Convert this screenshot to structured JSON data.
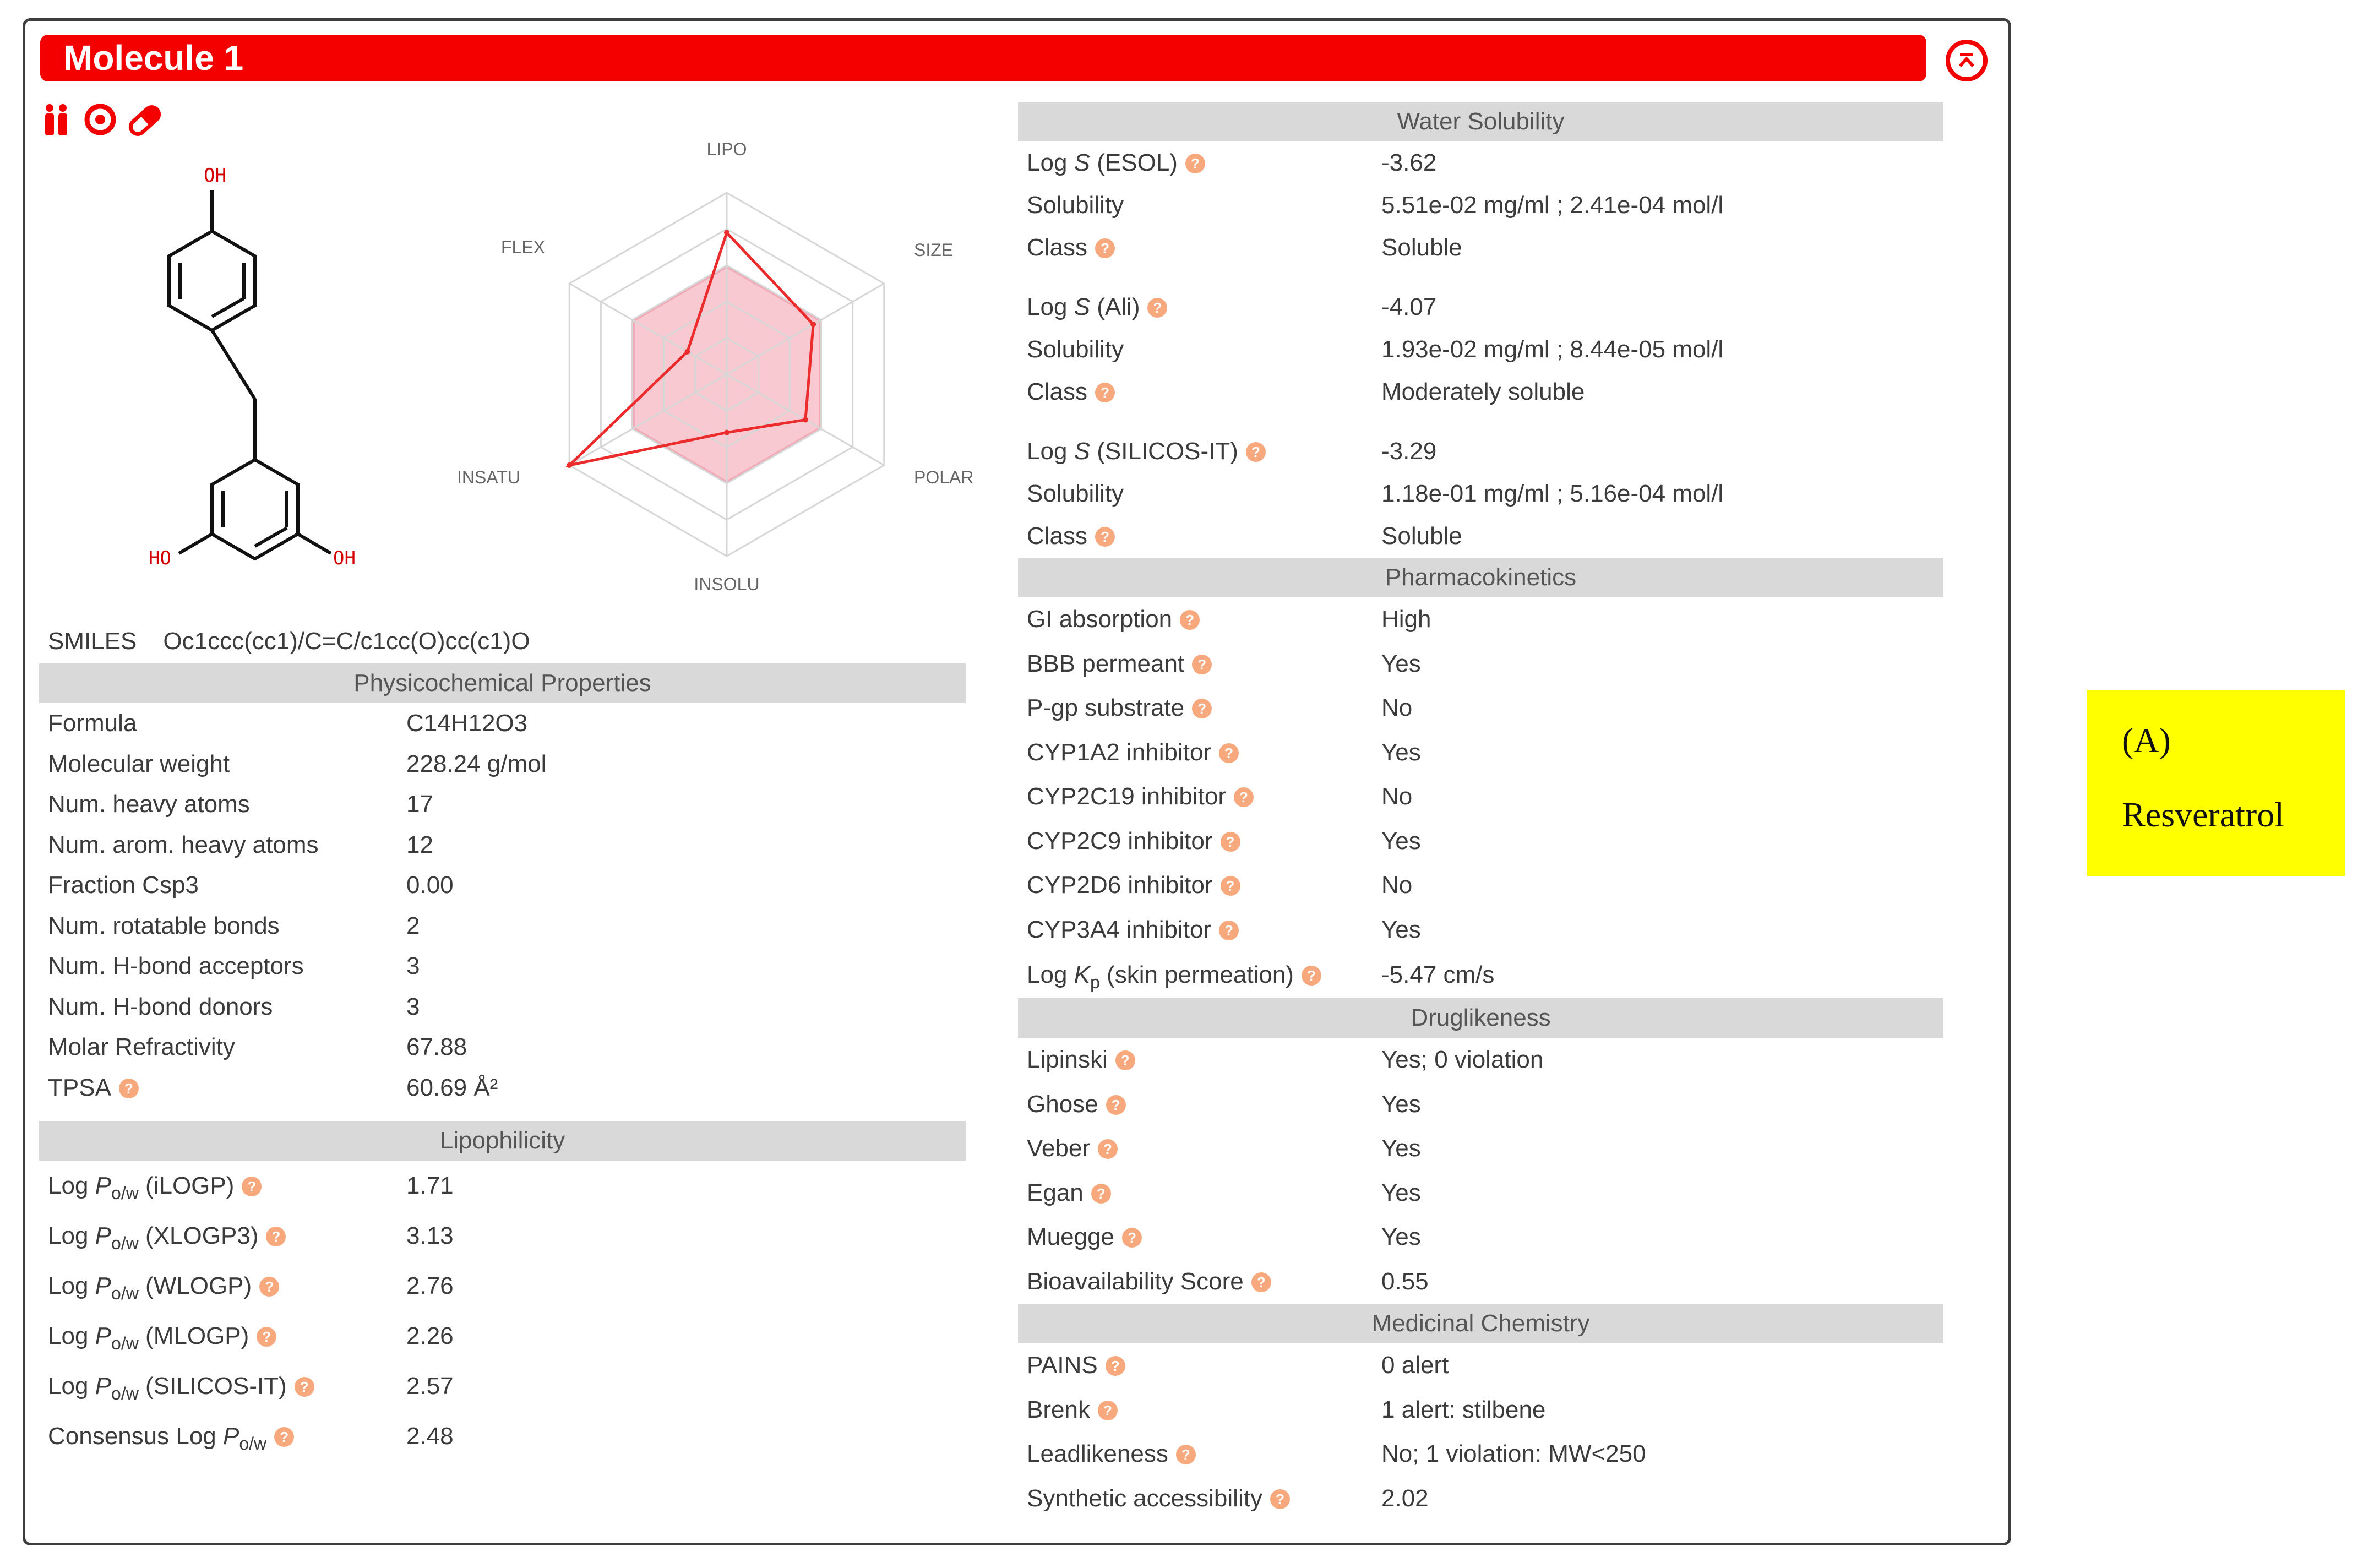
{
  "header": {
    "title": "Molecule 1"
  },
  "icons": {
    "toolbar": [
      "bioavailability-icon",
      "target-icon",
      "pill-icon"
    ],
    "collapse": "collapse-up-icon"
  },
  "structure": {
    "atoms": [
      "OH",
      "HO",
      "OH"
    ]
  },
  "radar": {
    "axes": [
      "LIPO",
      "SIZE",
      "POLAR",
      "INSOLU",
      "INSATU",
      "FLEX"
    ],
    "values": [
      0.78,
      0.55,
      0.5,
      0.32,
      1.0,
      0.25
    ]
  },
  "smiles": {
    "label": "SMILES",
    "value": "Oc1ccc(cc1)/C=C/c1cc(O)cc(c1)O"
  },
  "physchem": {
    "title": "Physicochemical Properties",
    "rows": [
      {
        "k": "Formula",
        "v": "C14H12O3"
      },
      {
        "k": "Molecular weight",
        "v": "228.24 g/mol"
      },
      {
        "k": "Num. heavy atoms",
        "v": "17"
      },
      {
        "k": "Num. arom. heavy atoms",
        "v": "12"
      },
      {
        "k": "Fraction Csp3",
        "v": "0.00"
      },
      {
        "k": "Num. rotatable bonds",
        "v": "2"
      },
      {
        "k": "Num. H-bond acceptors",
        "v": "3"
      },
      {
        "k": "Num. H-bond donors",
        "v": "3"
      },
      {
        "k": "Molar Refractivity",
        "v": "67.88"
      },
      {
        "k": "TPSA",
        "v": "60.69 Å²"
      }
    ]
  },
  "lipo": {
    "title": "Lipophilicity",
    "rows": [
      {
        "method": "iLOGP",
        "v": "1.71"
      },
      {
        "method": "XLOGP3",
        "v": "3.13"
      },
      {
        "method": "WLOGP",
        "v": "2.76"
      },
      {
        "method": "MLOGP",
        "v": "2.26"
      },
      {
        "method": "SILICOS-IT",
        "v": "2.57"
      }
    ],
    "consensus_label": "Consensus Log",
    "consensus_value": "2.48",
    "log": "Log",
    "p": "P",
    "sub": "o/w"
  },
  "water": {
    "title": "Water Solubility",
    "groups": [
      {
        "method": "ESOL",
        "logs": "-3.62",
        "solubility": "5.51e-02 mg/ml ; 2.41e-04 mol/l",
        "class": "Soluble"
      },
      {
        "method": "Ali",
        "logs": "-4.07",
        "solubility": "1.93e-02 mg/ml ; 8.44e-05 mol/l",
        "class": "Moderately soluble"
      },
      {
        "method": "SILICOS-IT",
        "logs": "-3.29",
        "solubility": "1.18e-01 mg/ml ; 5.16e-04 mol/l",
        "class": "Soluble"
      }
    ],
    "solubility_label": "Solubility",
    "class_label": "Class",
    "log": "Log",
    "s": "S"
  },
  "pk": {
    "title": "Pharmacokinetics",
    "rows": [
      {
        "k": "GI absorption",
        "v": "High"
      },
      {
        "k": "BBB permeant",
        "v": "Yes"
      },
      {
        "k": "P-gp substrate",
        "v": "No"
      },
      {
        "k": "CYP1A2 inhibitor",
        "v": "Yes"
      },
      {
        "k": "CYP2C19 inhibitor",
        "v": "No"
      },
      {
        "k": "CYP2C9 inhibitor",
        "v": "Yes"
      },
      {
        "k": "CYP2D6 inhibitor",
        "v": "No"
      },
      {
        "k": "CYP3A4 inhibitor",
        "v": "Yes"
      }
    ],
    "kp_prefix": "Log",
    "kp_k": "K",
    "kp_sub": "p",
    "kp_suffix": "(skin permeation)",
    "kp_value": "-5.47 cm/s"
  },
  "drug": {
    "title": "Druglikeness",
    "rows": [
      {
        "k": "Lipinski",
        "v": "Yes; 0 violation"
      },
      {
        "k": "Ghose",
        "v": "Yes"
      },
      {
        "k": "Veber",
        "v": "Yes"
      },
      {
        "k": "Egan",
        "v": "Yes"
      },
      {
        "k": "Muegge",
        "v": "Yes"
      },
      {
        "k": "Bioavailability Score",
        "v": "0.55"
      }
    ]
  },
  "med": {
    "title": "Medicinal Chemistry",
    "rows": [
      {
        "k": "PAINS",
        "v": "0 alert"
      },
      {
        "k": "Brenk",
        "v": "1 alert: stilbene"
      },
      {
        "k": "Leadlikeness",
        "v": "No; 1 violation: MW<250"
      },
      {
        "k": "Synthetic accessibility",
        "v": "2.02"
      }
    ]
  },
  "label": {
    "letter": "(A)",
    "name": "Resveratrol"
  },
  "colors": {
    "accent": "#f50000",
    "help": "#f7a87c",
    "section": "#d9d9d9",
    "tag": "#ffff00"
  }
}
